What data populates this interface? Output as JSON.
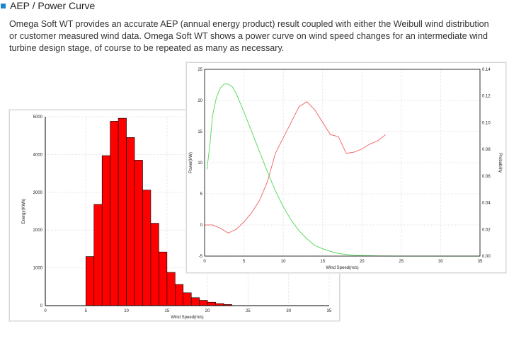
{
  "heading": {
    "title": "AEP / Power Curve",
    "bullet_color": "#1f84c8"
  },
  "description": [
    "Omega Soft WT provides an accurate AEP (annual energy product) result coupled with either the Weibull wind distribution",
    "or customer measured wind data. Omega Soft WT shows a power curve on wind speed changes for an intermediate wind",
    "turbine design stage, of course to be repeated as many as necessary."
  ],
  "chart_data": [
    {
      "type": "bar",
      "title": "",
      "xlabel": "Wind Speed(m/s)",
      "ylabel": "Energy(KWh)",
      "xlim": [
        0,
        35
      ],
      "ylim": [
        0,
        5000
      ],
      "xticks": [
        0,
        5,
        10,
        15,
        20,
        25,
        30,
        35
      ],
      "yticks": [
        0,
        1000,
        2000,
        3000,
        4000,
        5000
      ],
      "bar_color": "#ff0000",
      "bar_width": 1,
      "x": [
        5.5,
        6.5,
        7.5,
        8.5,
        9.5,
        10.5,
        11.5,
        12.5,
        13.5,
        14.5,
        15.5,
        16.5,
        17.5,
        18.5,
        19.5,
        20.5,
        21.5,
        22.5
      ],
      "values": [
        1300,
        2680,
        3970,
        4880,
        4960,
        4450,
        3850,
        3060,
        2180,
        1420,
        880,
        560,
        340,
        210,
        140,
        90,
        55,
        30
      ],
      "grid": true
    },
    {
      "type": "line",
      "title": "",
      "xlabel": "Wind Speed(m/s)",
      "ylabel": "Power(kW)",
      "y2label": "Probability",
      "xlim": [
        0,
        35
      ],
      "ylim": [
        -5,
        25
      ],
      "y2lim": [
        0,
        0.14
      ],
      "xticks": [
        0,
        5,
        10,
        15,
        20,
        25,
        30,
        35
      ],
      "yticks": [
        -5,
        0,
        5,
        10,
        15,
        20,
        25
      ],
      "y2ticks": [
        "0.00",
        "0.02",
        "0.04",
        "0.06",
        "0.08",
        "0.10",
        "0.12",
        "0.14"
      ],
      "grid": true,
      "series": [
        {
          "axis": "left",
          "color": "#ef6f6f",
          "x": [
            0,
            1,
            2,
            3,
            4,
            5,
            6,
            7,
            8,
            9,
            10,
            11,
            12,
            13,
            14,
            15,
            16,
            17,
            18,
            19,
            20,
            21,
            22,
            23
          ],
          "y": [
            0,
            0,
            -0.5,
            -1.3,
            -0.7,
            0.5,
            2,
            4,
            7,
            11.5,
            14,
            16.5,
            19,
            19.8,
            18.5,
            16.5,
            14.5,
            14.2,
            11.5,
            11.7,
            12.2,
            13,
            13.5,
            14.5
          ]
        },
        {
          "axis": "right",
          "color": "#5fdc5f",
          "x": [
            0.3,
            0.7,
            1,
            1.5,
            2,
            2.5,
            3,
            3.5,
            4,
            5,
            6,
            7,
            8,
            9,
            10,
            11,
            12,
            13,
            14,
            15,
            16,
            17,
            18,
            19,
            20,
            22,
            24,
            26,
            28,
            30,
            32,
            35
          ],
          "y": [
            0.065,
            0.085,
            0.105,
            0.119,
            0.126,
            0.129,
            0.129,
            0.127,
            0.122,
            0.108,
            0.093,
            0.078,
            0.063,
            0.049,
            0.037,
            0.027,
            0.019,
            0.013,
            0.008,
            0.0055,
            0.0035,
            0.002,
            0.0012,
            0.0007,
            0.0004,
            0.0001,
            0,
            0,
            0,
            0,
            0,
            0
          ]
        }
      ]
    }
  ]
}
